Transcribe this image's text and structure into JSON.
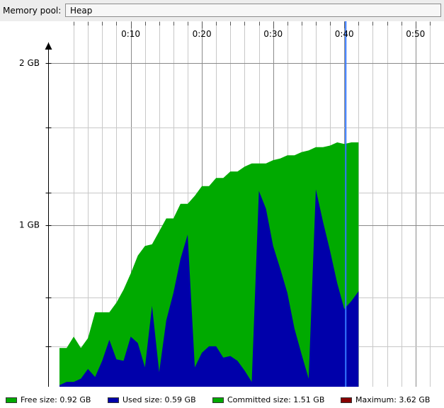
{
  "toolbar": {
    "memory_pool_label": "Memory pool:",
    "memory_pool_value": "Heap"
  },
  "chart_data": {
    "type": "area",
    "title": "",
    "xlabel": "",
    "ylabel": "",
    "x_unit": "seconds",
    "x_ticks": [
      "0:10",
      "0:20",
      "0:30",
      "0:40",
      "0:50"
    ],
    "x_tick_values": [
      10,
      20,
      30,
      40,
      50
    ],
    "xlim": [
      0,
      54
    ],
    "y_ticks": [
      "1 GB",
      "2 GB"
    ],
    "y_tick_values": [
      1,
      2
    ],
    "ylim": [
      0,
      2.1
    ],
    "grid": true,
    "cursor_x": 40.2,
    "colors": {
      "committed": "#00aa00",
      "used": "#0000aa",
      "maximum": "#880000",
      "cursor": "#3377ff",
      "grid": "#b0b0b0"
    },
    "x": [
      0,
      1,
      2,
      3,
      4,
      5,
      6,
      7,
      8,
      9,
      10,
      11,
      12,
      13,
      14,
      15,
      16,
      17,
      18,
      19,
      20,
      21,
      22,
      23,
      24,
      25,
      26,
      27,
      28,
      29,
      30,
      31,
      32,
      33,
      34,
      35,
      36,
      37,
      38,
      39,
      40,
      41,
      42
    ],
    "series": [
      {
        "name": "Committed size",
        "values": [
          0.24,
          0.24,
          0.31,
          0.24,
          0.3,
          0.46,
          0.46,
          0.46,
          0.52,
          0.6,
          0.7,
          0.81,
          0.87,
          0.88,
          0.96,
          1.04,
          1.04,
          1.13,
          1.13,
          1.18,
          1.24,
          1.24,
          1.29,
          1.29,
          1.33,
          1.33,
          1.36,
          1.38,
          1.38,
          1.38,
          1.4,
          1.41,
          1.43,
          1.43,
          1.45,
          1.46,
          1.48,
          1.48,
          1.49,
          1.51,
          1.5,
          1.51,
          1.51
        ]
      },
      {
        "name": "Used size",
        "values": [
          0.01,
          0.03,
          0.03,
          0.05,
          0.11,
          0.06,
          0.16,
          0.29,
          0.17,
          0.16,
          0.31,
          0.27,
          0.12,
          0.5,
          0.09,
          0.41,
          0.58,
          0.79,
          0.94,
          0.12,
          0.21,
          0.25,
          0.25,
          0.18,
          0.19,
          0.16,
          0.1,
          0.03,
          1.21,
          1.1,
          0.87,
          0.73,
          0.58,
          0.36,
          0.2,
          0.05,
          1.22,
          1.02,
          0.84,
          0.64,
          0.48,
          0.53,
          0.59
        ]
      }
    ],
    "legend": [
      {
        "label": "Free size: 0.92 GB",
        "color": "#00aa00"
      },
      {
        "label": "Used size: 0.59 GB",
        "color": "#0000aa"
      },
      {
        "label": "Committed size: 1.51 GB",
        "color": "#00aa00"
      },
      {
        "label": "Maximum: 3.62 GB",
        "color": "#880000"
      }
    ],
    "legend_position": "bottom"
  }
}
